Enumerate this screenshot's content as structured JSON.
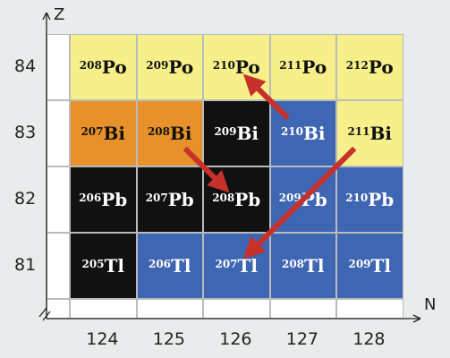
{
  "axes": {
    "y_letter": "Z",
    "x_letter": "N"
  },
  "z_labels": [
    "84",
    "83",
    "82",
    "81"
  ],
  "n_labels": [
    "124",
    "125",
    "126",
    "127",
    "128"
  ],
  "colors": {
    "yellow": "#f6ef8a",
    "orange": "#e8912a",
    "black": "#111111",
    "blue": "#3f66b3",
    "white": "#ffffff",
    "arrow": "#c8302a"
  },
  "nuclides": [
    {
      "mass": "208",
      "symbol": "Po",
      "z": "84",
      "n": "124",
      "color": "yellow"
    },
    {
      "mass": "209",
      "symbol": "Po",
      "z": "84",
      "n": "125",
      "color": "yellow"
    },
    {
      "mass": "210",
      "symbol": "Po",
      "z": "84",
      "n": "126",
      "color": "yellow"
    },
    {
      "mass": "211",
      "symbol": "Po",
      "z": "84",
      "n": "127",
      "color": "yellow"
    },
    {
      "mass": "212",
      "symbol": "Po",
      "z": "84",
      "n": "128",
      "color": "yellow"
    },
    {
      "mass": "207",
      "symbol": "Bi",
      "z": "83",
      "n": "124",
      "color": "orange"
    },
    {
      "mass": "208",
      "symbol": "Bi",
      "z": "83",
      "n": "125",
      "color": "orange"
    },
    {
      "mass": "209",
      "symbol": "Bi",
      "z": "83",
      "n": "126",
      "color": "black"
    },
    {
      "mass": "210",
      "symbol": "Bi",
      "z": "83",
      "n": "127",
      "color": "blue"
    },
    {
      "mass": "211",
      "symbol": "Bi",
      "z": "83",
      "n": "128",
      "color": "yellow"
    },
    {
      "mass": "206",
      "symbol": "Pb",
      "z": "82",
      "n": "124",
      "color": "black"
    },
    {
      "mass": "207",
      "symbol": "Pb",
      "z": "82",
      "n": "125",
      "color": "black"
    },
    {
      "mass": "208",
      "symbol": "Pb",
      "z": "82",
      "n": "126",
      "color": "black"
    },
    {
      "mass": "209",
      "symbol": "Pb",
      "z": "82",
      "n": "127",
      "color": "blue"
    },
    {
      "mass": "210",
      "symbol": "Pb",
      "z": "82",
      "n": "128",
      "color": "blue"
    },
    {
      "mass": "205",
      "symbol": "Tl",
      "z": "81",
      "n": "124",
      "color": "black"
    },
    {
      "mass": "206",
      "symbol": "Tl",
      "z": "81",
      "n": "125",
      "color": "blue"
    },
    {
      "mass": "207",
      "symbol": "Tl",
      "z": "81",
      "n": "126",
      "color": "blue"
    },
    {
      "mass": "208",
      "symbol": "Tl",
      "z": "81",
      "n": "127",
      "color": "blue"
    },
    {
      "mass": "209",
      "symbol": "Tl",
      "z": "81",
      "n": "128",
      "color": "blue"
    }
  ],
  "arrows": [
    {
      "from": "210Bi",
      "to": "210Po"
    },
    {
      "from": "208Bi",
      "to": "208Pb"
    },
    {
      "from": "211Bi",
      "to": "207Tl"
    }
  ]
}
